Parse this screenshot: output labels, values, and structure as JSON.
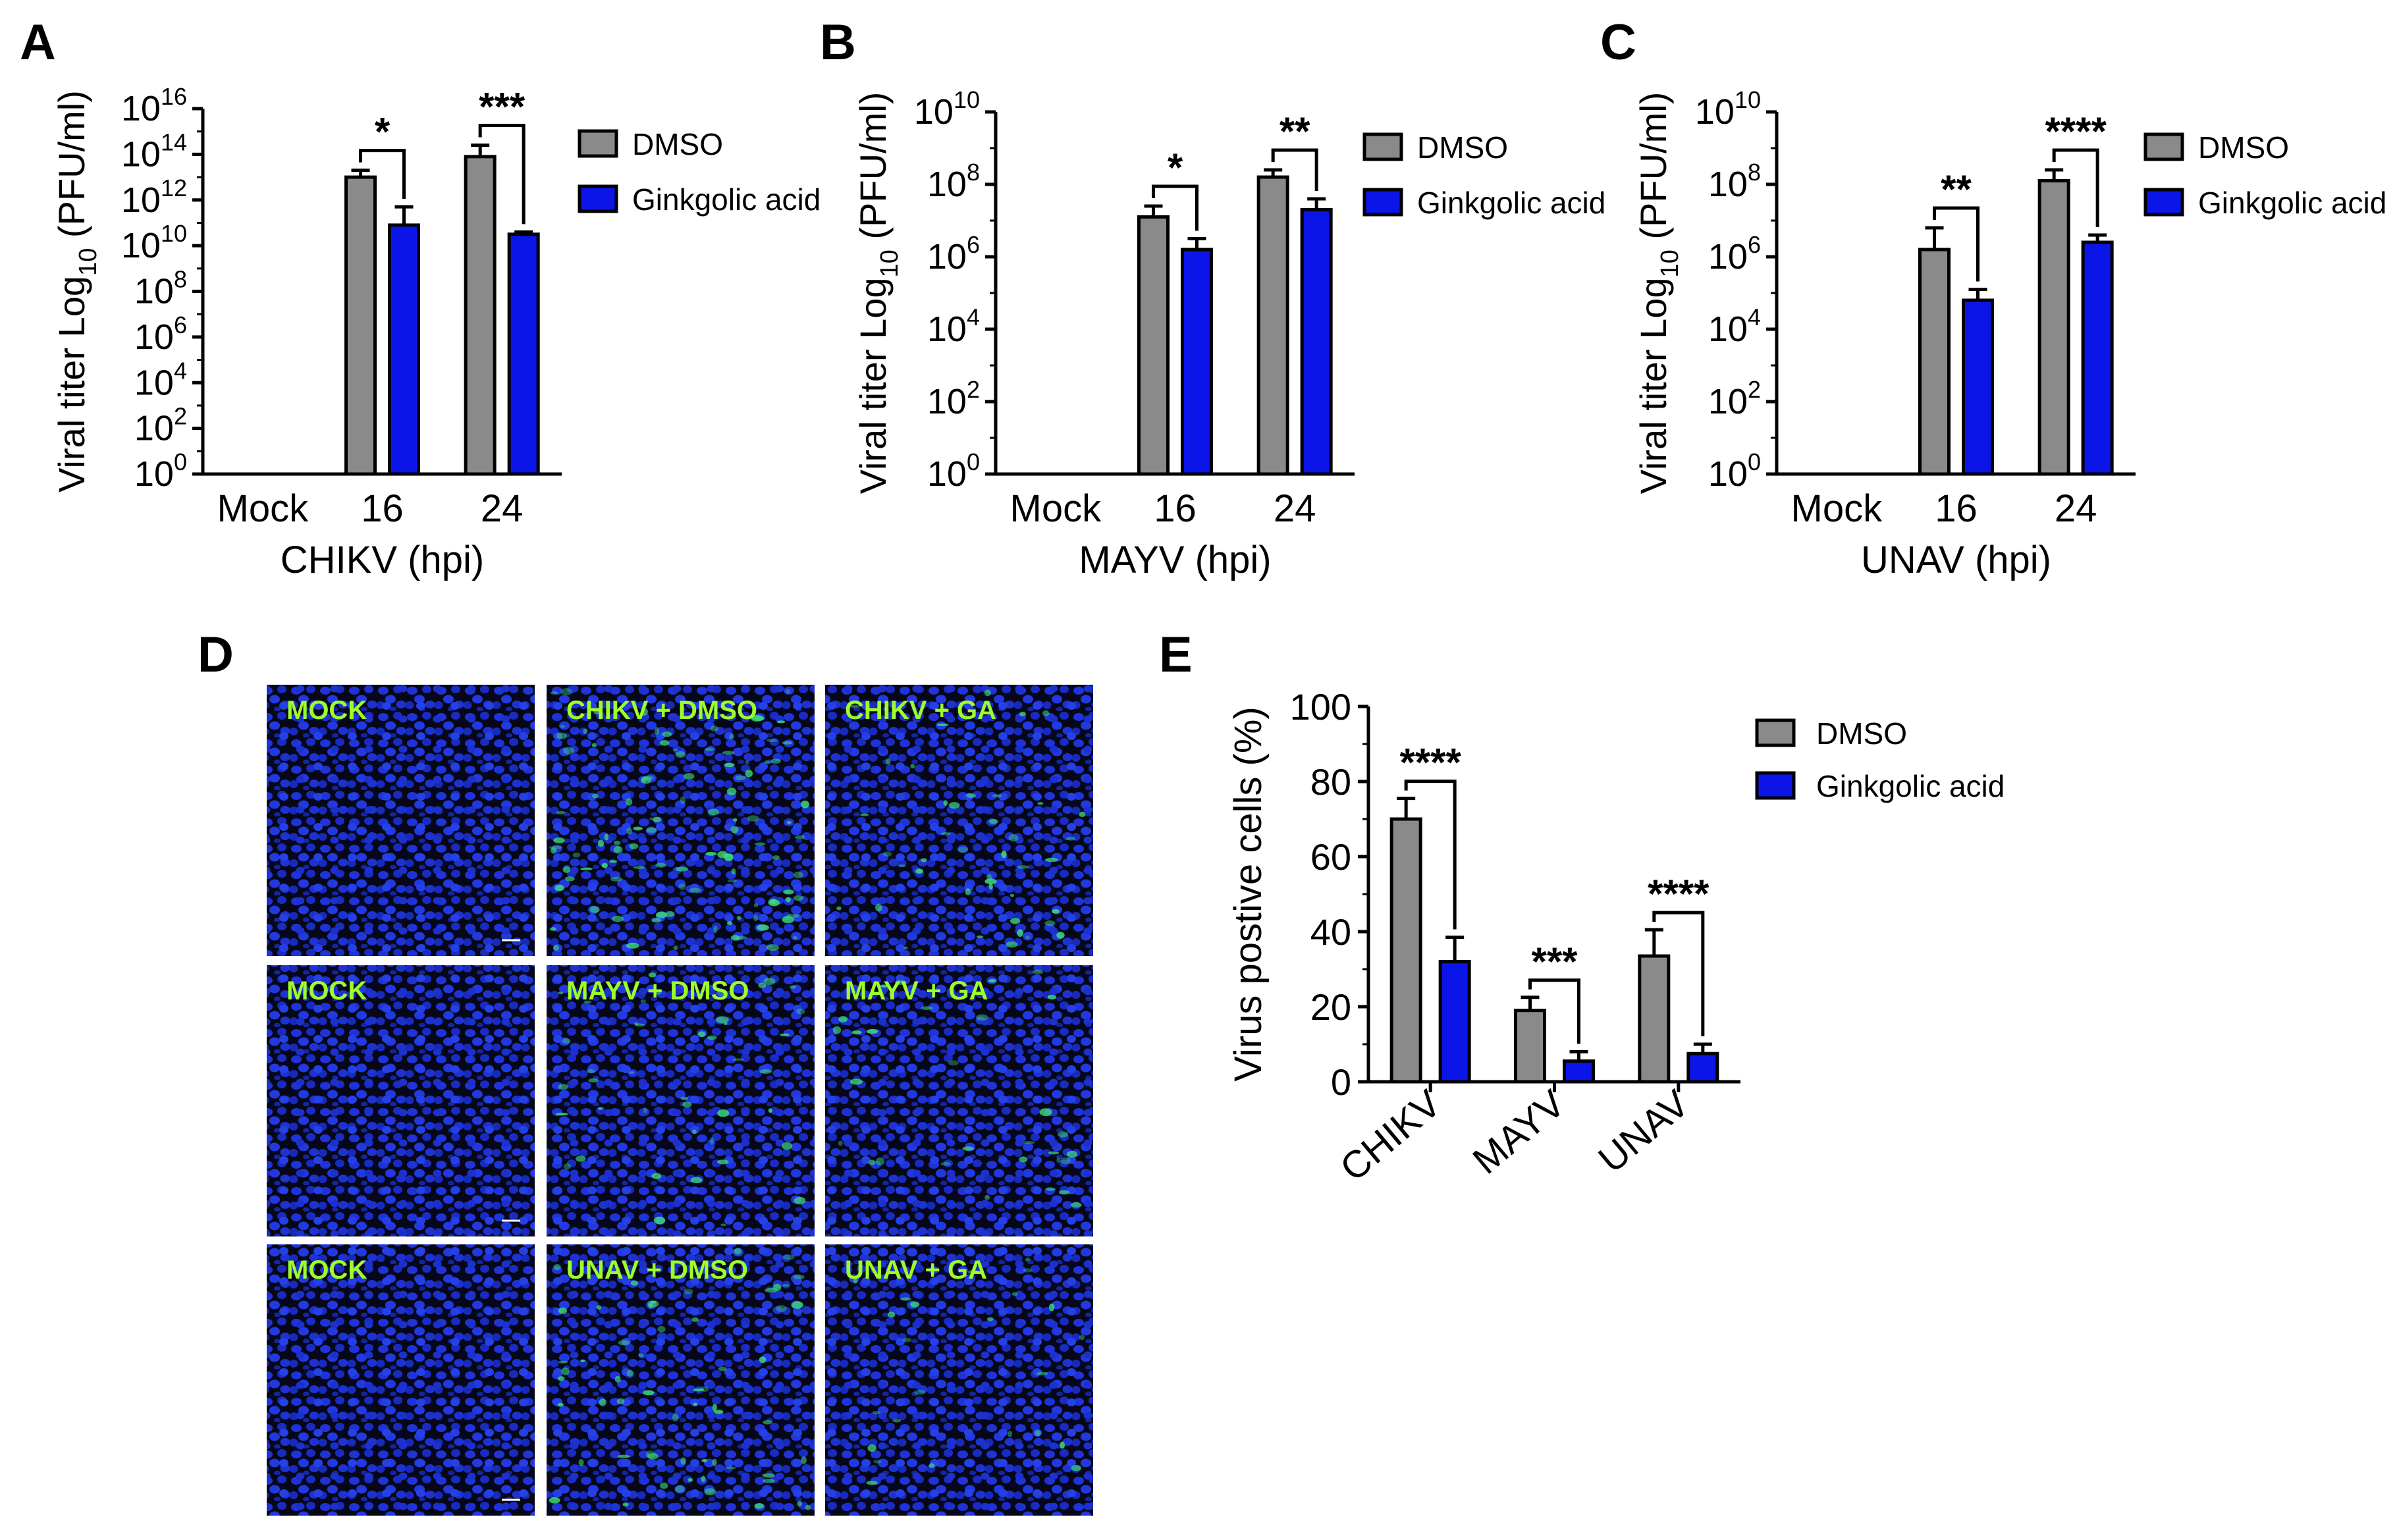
{
  "panels": [
    "A",
    "B",
    "C",
    "D",
    "E"
  ],
  "chart_data": [
    {
      "panel": "A",
      "type": "bar",
      "log_scale": true,
      "categories": [
        "Mock",
        "16",
        "24"
      ],
      "xlabel": "CHIKV (hpi)",
      "ylabel_main": "Viral titer Log",
      "ylabel_sub": "10",
      "ylabel_tail": " (PFU/ml)",
      "ylim_exp": [
        0,
        16
      ],
      "ticks": [
        {
          "base": "10",
          "exp": "0"
        },
        {
          "base": "10",
          "exp": "2"
        },
        {
          "base": "10",
          "exp": "4"
        },
        {
          "base": "10",
          "exp": "6"
        },
        {
          "base": "10",
          "exp": "8"
        },
        {
          "base": "10",
          "exp": "10"
        },
        {
          "base": "10",
          "exp": "12"
        },
        {
          "base": "10",
          "exp": "14"
        },
        {
          "base": "10",
          "exp": "16"
        }
      ],
      "series": [
        {
          "name": "DMSO",
          "color": "#8a8a8a",
          "values_log10": [
            null,
            13.0,
            13.9
          ],
          "err_log10": [
            0,
            0.3,
            0.5
          ]
        },
        {
          "name": "Ginkgolic acid",
          "color": "#0b15e8",
          "values_log10": [
            null,
            10.9,
            10.5
          ],
          "err_log10": [
            0,
            0.8,
            0.1
          ]
        }
      ],
      "significance": [
        {
          "category": "16",
          "label": "*"
        },
        {
          "category": "24",
          "label": "***"
        }
      ]
    },
    {
      "panel": "B",
      "type": "bar",
      "log_scale": true,
      "categories": [
        "Mock",
        "16",
        "24"
      ],
      "xlabel": "MAYV (hpi)",
      "ylabel_main": "Viral titer Log",
      "ylabel_sub": "10",
      "ylabel_tail": " (PFU/ml)",
      "ylim_exp": [
        0,
        10
      ],
      "ticks": [
        {
          "base": "10",
          "exp": "0"
        },
        {
          "base": "10",
          "exp": "2"
        },
        {
          "base": "10",
          "exp": "4"
        },
        {
          "base": "10",
          "exp": "6"
        },
        {
          "base": "10",
          "exp": "8"
        },
        {
          "base": "10",
          "exp": "10"
        }
      ],
      "series": [
        {
          "name": "DMSO",
          "color": "#8a8a8a",
          "values_log10": [
            null,
            7.1,
            8.2
          ],
          "err_log10": [
            0,
            0.3,
            0.2
          ]
        },
        {
          "name": "Ginkgolic acid",
          "color": "#0b15e8",
          "values_log10": [
            null,
            6.2,
            7.3
          ],
          "err_log10": [
            0,
            0.3,
            0.3
          ]
        }
      ],
      "significance": [
        {
          "category": "16",
          "label": "*"
        },
        {
          "category": "24",
          "label": "**"
        }
      ]
    },
    {
      "panel": "C",
      "type": "bar",
      "log_scale": true,
      "categories": [
        "Mock",
        "16",
        "24"
      ],
      "xlabel": "UNAV (hpi)",
      "ylabel_main": "Viral titer Log",
      "ylabel_sub": "10",
      "ylabel_tail": " (PFU/ml)",
      "ylim_exp": [
        0,
        10
      ],
      "ticks": [
        {
          "base": "10",
          "exp": "0"
        },
        {
          "base": "10",
          "exp": "2"
        },
        {
          "base": "10",
          "exp": "4"
        },
        {
          "base": "10",
          "exp": "6"
        },
        {
          "base": "10",
          "exp": "8"
        },
        {
          "base": "10",
          "exp": "10"
        }
      ],
      "series": [
        {
          "name": "DMSO",
          "color": "#8a8a8a",
          "values_log10": [
            null,
            6.2,
            8.1
          ],
          "err_log10": [
            0,
            0.6,
            0.3
          ]
        },
        {
          "name": "Ginkgolic acid",
          "color": "#0b15e8",
          "values_log10": [
            null,
            4.8,
            6.4
          ],
          "err_log10": [
            0,
            0.3,
            0.2
          ]
        }
      ],
      "significance": [
        {
          "category": "16",
          "label": "**"
        },
        {
          "category": "24",
          "label": "****"
        }
      ]
    },
    {
      "panel": "E",
      "type": "bar",
      "log_scale": false,
      "categories": [
        "CHIKV",
        "MAYV",
        "UNAV"
      ],
      "xlabel": "",
      "ylabel": "Virus postive cells (%)",
      "ylim": [
        0,
        100
      ],
      "ticks": [
        "0",
        "20",
        "40",
        "60",
        "80",
        "100"
      ],
      "series": [
        {
          "name": "DMSO",
          "color": "#8a8a8a",
          "values": [
            70,
            19,
            33.5
          ],
          "err": [
            5.5,
            3.5,
            7
          ]
        },
        {
          "name": "Ginkgolic acid",
          "color": "#0b15e8",
          "values": [
            32,
            5.5,
            7.5
          ],
          "err": [
            6.5,
            2.5,
            2.5
          ]
        }
      ],
      "significance": [
        {
          "category": "CHIKV",
          "label": "****"
        },
        {
          "category": "MAYV",
          "label": "***"
        },
        {
          "category": "UNAV",
          "label": "****"
        }
      ]
    }
  ],
  "micrographs": {
    "panel": "D",
    "rows": [
      [
        "MOCK",
        "CHIKV + DMSO",
        "CHIKV + GA"
      ],
      [
        "MOCK",
        "MAYV + DMSO",
        "MAYV + GA"
      ],
      [
        "MOCK",
        "UNAV + DMSO",
        "UNAV + GA"
      ]
    ],
    "nuclei_color": "#1a2ad0",
    "infected_color": "#3de07a",
    "green_intensity": [
      [
        0,
        0.9,
        0.35
      ],
      [
        0,
        0.35,
        0.25
      ],
      [
        0,
        0.5,
        0.2
      ]
    ]
  }
}
